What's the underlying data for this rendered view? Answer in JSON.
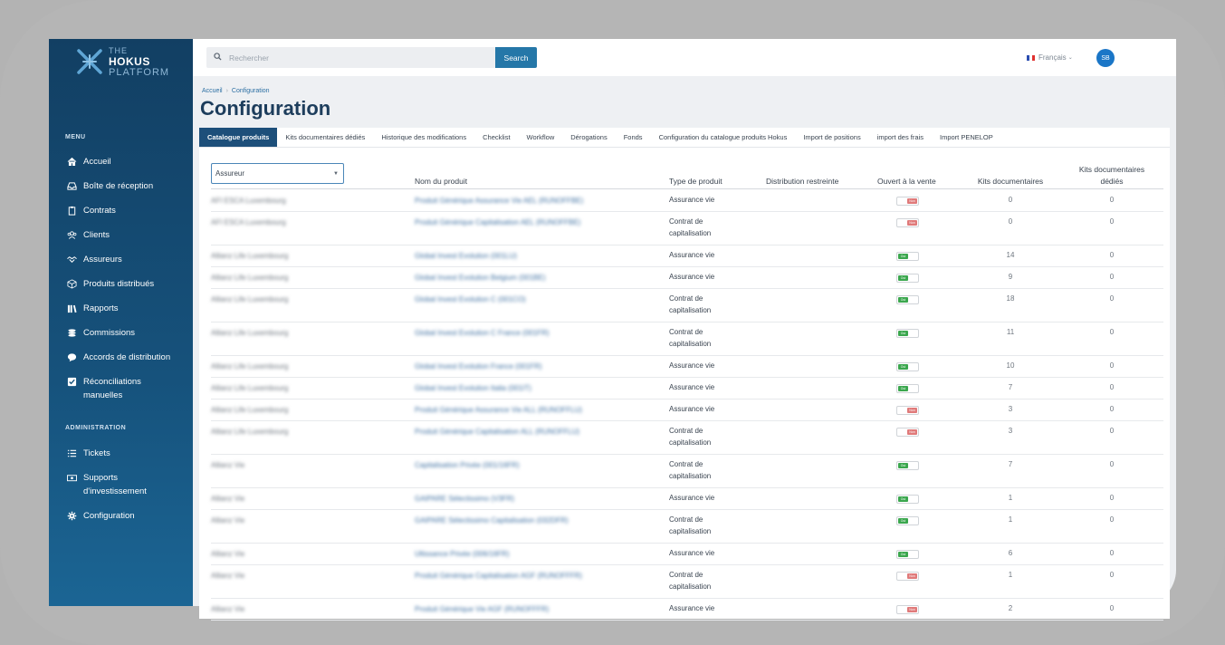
{
  "app": {
    "logo_line1": "THE",
    "logo_line2": "HOKUS",
    "logo_line3": "PLATFORM"
  },
  "sidebar": {
    "menu_title": "MENU",
    "admin_title": "ADMINISTRATION",
    "items": [
      {
        "label": "Accueil",
        "icon": "home-icon"
      },
      {
        "label": "Boîte de réception",
        "icon": "inbox-icon"
      },
      {
        "label": "Contrats",
        "icon": "clipboard-icon"
      },
      {
        "label": "Clients",
        "icon": "users-icon"
      },
      {
        "label": "Assureurs",
        "icon": "handshake-icon"
      },
      {
        "label": "Produits distribués",
        "icon": "cube-icon"
      },
      {
        "label": "Rapports",
        "icon": "books-icon"
      },
      {
        "label": "Commissions",
        "icon": "coins-icon"
      },
      {
        "label": "Accords de distribution",
        "icon": "chat-icon"
      },
      {
        "label": "Réconciliations manuelles",
        "icon": "check-square-icon"
      }
    ],
    "admin_items": [
      {
        "label": "Tickets",
        "icon": "list-icon"
      },
      {
        "label": "Supports d'investissement",
        "icon": "money-icon"
      },
      {
        "label": "Configuration",
        "icon": "gear-icon"
      }
    ]
  },
  "topbar": {
    "search_placeholder": "Rechercher",
    "search_button": "Search",
    "language": "Français",
    "avatar_initials": "SB"
  },
  "breadcrumb": {
    "home": "Accueil",
    "current": "Configuration"
  },
  "page_title": "Configuration",
  "tabs": [
    "Catalogue produits",
    "Kits documentaires dédiés",
    "Historique des modifications",
    "Checklist",
    "Workflow",
    "Dérogations",
    "Fonds",
    "Configuration du catalogue produits Hokus",
    "Import de positions",
    "import des frais",
    "Import PENELOP"
  ],
  "table": {
    "filter_label": "Assureur",
    "headers": {
      "name": "Nom du produit",
      "type": "Type de produit",
      "restricted": "Distribution restreinte",
      "open": "Ouvert à la vente",
      "kits": "Kits documentaires",
      "dedicated_1": "Kits documentaires",
      "dedicated_2": "dédiés"
    },
    "toggle_on_label": "Oui",
    "toggle_off_label": "Non",
    "rows": [
      {
        "assureur": "AFI ESCA Luxembourg",
        "name": "Produit Générique Assurance Vie AEL (RUNOFFBE)",
        "type1": "Assurance vie",
        "type2": "",
        "open": false,
        "kits": "0",
        "dedicated": "0"
      },
      {
        "assureur": "AFI ESCA Luxembourg",
        "name": "Produit Générique Capitalisation AEL (RUNOFFBE)",
        "type1": "Contrat de",
        "type2": "capitalisation",
        "open": false,
        "kits": "0",
        "dedicated": "0"
      },
      {
        "assureur": "Allianz Life Luxembourg",
        "name": "Global Invest Evolution (001LU)",
        "type1": "Assurance vie",
        "type2": "",
        "open": true,
        "kits": "14",
        "dedicated": "0"
      },
      {
        "assureur": "Allianz Life Luxembourg",
        "name": "Global Invest Evolution Belgium (001BE)",
        "type1": "Assurance vie",
        "type2": "",
        "open": true,
        "kits": "9",
        "dedicated": "0"
      },
      {
        "assureur": "Allianz Life Luxembourg",
        "name": "Global Invest Evolution C (001CO)",
        "type1": "Contrat de",
        "type2": "capitalisation",
        "open": true,
        "kits": "18",
        "dedicated": "0"
      },
      {
        "assureur": "Allianz Life Luxembourg",
        "name": "Global Invest Evolution C France (001FR)",
        "type1": "Contrat de",
        "type2": "capitalisation",
        "open": true,
        "kits": "11",
        "dedicated": "0"
      },
      {
        "assureur": "Allianz Life Luxembourg",
        "name": "Global Invest Evolution France (001FR)",
        "type1": "Assurance vie",
        "type2": "",
        "open": true,
        "kits": "10",
        "dedicated": "0"
      },
      {
        "assureur": "Allianz Life Luxembourg",
        "name": "Global Invest Evolution Italia (001IT)",
        "type1": "Assurance vie",
        "type2": "",
        "open": true,
        "kits": "7",
        "dedicated": "0"
      },
      {
        "assureur": "Allianz Life Luxembourg",
        "name": "Produit Générique Assurance Vie ALL (RUNOFFLU)",
        "type1": "Assurance vie",
        "type2": "",
        "open": false,
        "kits": "3",
        "dedicated": "0"
      },
      {
        "assureur": "Allianz Life Luxembourg",
        "name": "Produit Générique Capitalisation ALL (RUNOFFLU)",
        "type1": "Contrat de",
        "type2": "capitalisation",
        "open": false,
        "kits": "3",
        "dedicated": "0"
      },
      {
        "assureur": "Allianz Vie",
        "name": "Capitalisation Privée (001/16FR)",
        "type1": "Contrat de",
        "type2": "capitalisation",
        "open": true,
        "kits": "7",
        "dedicated": "0"
      },
      {
        "assureur": "Allianz Vie",
        "name": "GAIPARE Sélectissimo (V3FR)",
        "type1": "Assurance vie",
        "type2": "",
        "open": true,
        "kits": "1",
        "dedicated": "0"
      },
      {
        "assureur": "Allianz Vie",
        "name": "GAIPARE Sélectissimo Capitalisation (032DFR)",
        "type1": "Contrat de",
        "type2": "capitalisation",
        "open": true,
        "kits": "1",
        "dedicated": "0"
      },
      {
        "assureur": "Allianz Vie",
        "name": "Ultissance Privée (006/16FR)",
        "type1": "Assurance vie",
        "type2": "",
        "open": true,
        "kits": "6",
        "dedicated": "0"
      },
      {
        "assureur": "Allianz Vie",
        "name": "Produit Générique Capitalisation AGF (RUNOFFFR)",
        "type1": "Contrat de",
        "type2": "capitalisation",
        "open": false,
        "kits": "1",
        "dedicated": "0"
      },
      {
        "assureur": "Allianz Vie",
        "name": "Produit Générique Vie AGF (RUNOFFFR)",
        "type1": "Assurance vie",
        "type2": "",
        "open": false,
        "kits": "2",
        "dedicated": "0"
      }
    ]
  },
  "colors": {
    "sidebar": "#16527c",
    "accent": "#2577a8",
    "tab_active": "#1d4f7a",
    "toggle_on": "#3ba74e",
    "toggle_off": "#e07a7a"
  }
}
